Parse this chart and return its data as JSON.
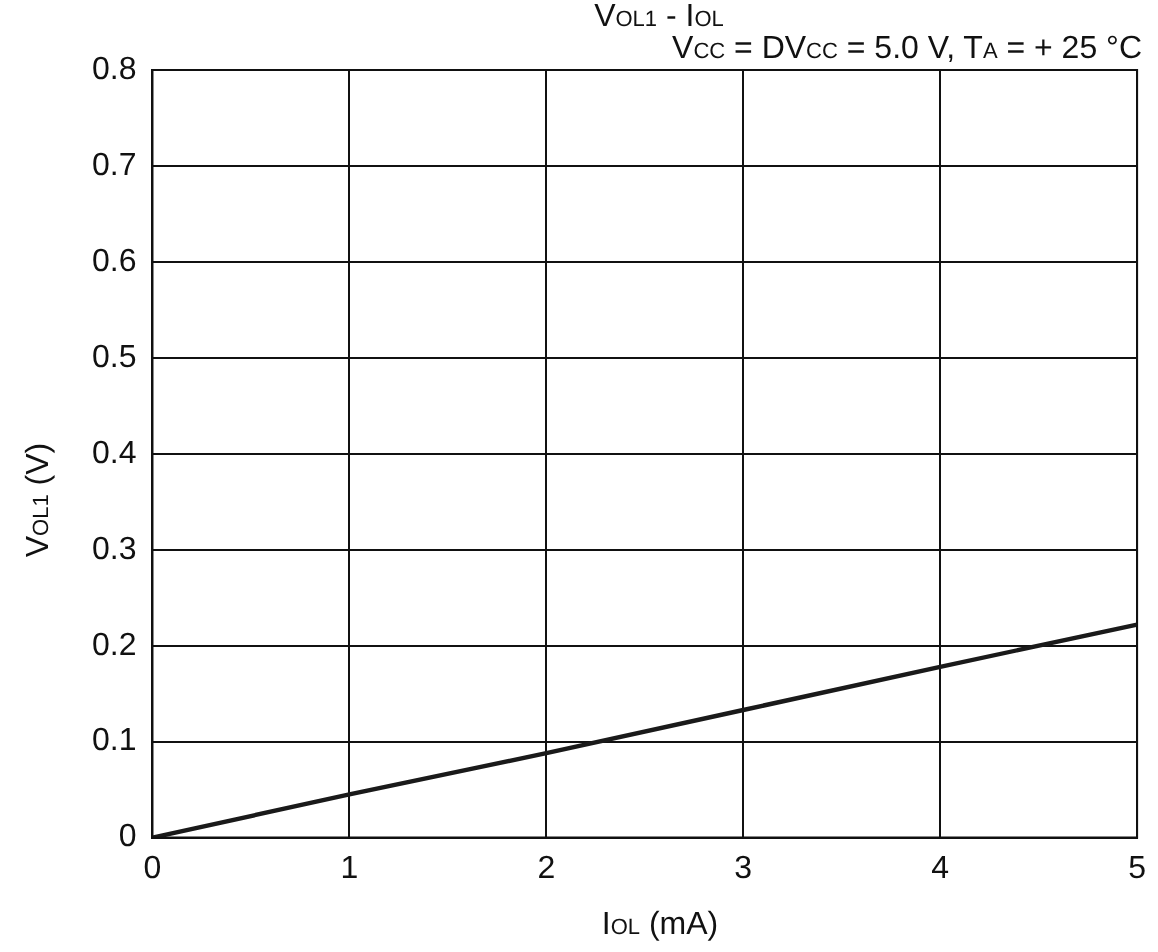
{
  "chart_data": {
    "type": "line",
    "title": "V$_{OL1}$ - I$_{OL}$",
    "subtitle": "V$_{CC}$ = DV$_{CC}$ = 5.0 V, T$_{A}$ = + 25 °C",
    "xlabel": "I$_{OL}$ (mA)",
    "ylabel": "V$_{OL1}$ (V)",
    "x": [
      0,
      1,
      2,
      3,
      4,
      5
    ],
    "series": [
      {
        "color": "#1a1a1a",
        "values": [
          0,
          0.045,
          0.088,
          0.133,
          0.178,
          0.222
        ]
      }
    ],
    "xlim": [
      0,
      5
    ],
    "xticks": [
      0,
      1,
      2,
      3,
      4,
      5
    ],
    "ylim": [
      0,
      0.8
    ],
    "yticks": [
      0,
      0.1,
      0.2,
      0.3,
      0.4,
      0.5,
      0.6,
      0.7,
      0.8
    ],
    "grid": true,
    "legend": false,
    "marker": "none",
    "line_style": "solid"
  }
}
